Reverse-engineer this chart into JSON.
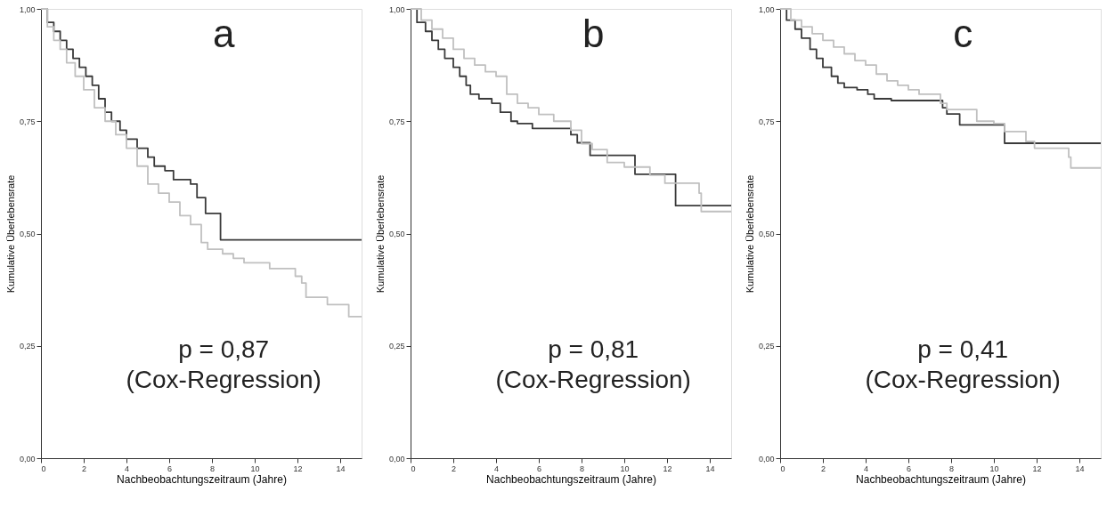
{
  "chart_data": [
    {
      "type": "step",
      "title": "a",
      "xlabel": "Nachbeobachtungszeitraum (Jahre)",
      "ylabel": "Kumulative Überlebensrate",
      "xlim": [
        0,
        15
      ],
      "xticks": [
        0,
        2,
        4,
        6,
        8,
        10,
        12,
        14
      ],
      "ylim": [
        0,
        1
      ],
      "yticks": [
        {
          "value": 0,
          "label": "0,00"
        },
        {
          "value": 0.25,
          "label": "0,25"
        },
        {
          "value": 0.5,
          "label": "0,50"
        },
        {
          "value": 0.75,
          "label": "0,75"
        },
        {
          "value": 1,
          "label": "1,00"
        }
      ],
      "annotations": [
        "p = 0,87",
        "(Cox-Regression)"
      ],
      "series": [
        {
          "color": "#3a3a3a",
          "x": [
            0,
            0.3,
            0.6,
            0.9,
            1.2,
            1.5,
            1.8,
            2.1,
            2.4,
            2.7,
            3.0,
            3.3,
            3.7,
            4.0,
            4.5,
            5.0,
            5.3,
            5.8,
            6.2,
            7.0,
            7.3,
            7.7,
            8.4,
            15
          ],
          "values": [
            1.0,
            0.97,
            0.95,
            0.93,
            0.91,
            0.89,
            0.87,
            0.85,
            0.83,
            0.8,
            0.77,
            0.75,
            0.73,
            0.71,
            0.69,
            0.67,
            0.65,
            0.64,
            0.62,
            0.61,
            0.58,
            0.545,
            0.486,
            0.486
          ]
        },
        {
          "color": "#c0c0c0",
          "x": [
            0,
            0.3,
            0.6,
            0.9,
            1.2,
            1.6,
            2,
            2.5,
            3,
            3.5,
            4,
            4.5,
            5,
            5.5,
            6,
            6.5,
            7.0,
            7.5,
            7.8,
            8.5,
            9.0,
            9.5,
            10.7,
            11.9,
            12.2,
            12.4,
            13.4,
            14.4,
            15
          ],
          "values": [
            1,
            0.96,
            0.93,
            0.91,
            0.88,
            0.85,
            0.82,
            0.78,
            0.75,
            0.72,
            0.69,
            0.65,
            0.61,
            0.59,
            0.57,
            0.54,
            0.52,
            0.48,
            0.465,
            0.455,
            0.445,
            0.435,
            0.422,
            0.405,
            0.39,
            0.358,
            0.342,
            0.315,
            0.315
          ]
        }
      ]
    },
    {
      "type": "step",
      "title": "b",
      "xlabel": "Nachbeobachtungszeitraum (Jahre)",
      "ylabel": "Kumulative Überlebensrate",
      "xlim": [
        0,
        15
      ],
      "xticks": [
        0,
        2,
        4,
        6,
        8,
        10,
        12,
        14
      ],
      "ylim": [
        0,
        1
      ],
      "yticks": [
        {
          "value": 0,
          "label": "0,00"
        },
        {
          "value": 0.25,
          "label": "0,25"
        },
        {
          "value": 0.5,
          "label": "0,50"
        },
        {
          "value": 0.75,
          "label": "0,75"
        },
        {
          "value": 1,
          "label": "1,00"
        }
      ],
      "annotations": [
        "p = 0,81",
        "(Cox-Regression)"
      ],
      "series": [
        {
          "color": "#3a3a3a",
          "x": [
            0,
            0.3,
            0.7,
            1,
            1.3,
            1.6,
            2,
            2.3,
            2.6,
            2.8,
            3.2,
            3.8,
            4.2,
            4.7,
            5,
            5.7,
            7.5,
            7.8,
            8.4,
            10.5,
            12.4,
            15
          ],
          "values": [
            1,
            0.97,
            0.95,
            0.93,
            0.91,
            0.89,
            0.87,
            0.85,
            0.83,
            0.81,
            0.8,
            0.79,
            0.77,
            0.75,
            0.745,
            0.734,
            0.72,
            0.702,
            0.674,
            0.632,
            0.562,
            0.562
          ]
        },
        {
          "color": "#c0c0c0",
          "x": [
            0,
            0.5,
            1,
            1.5,
            2,
            2.5,
            3,
            3.5,
            4,
            4.5,
            5,
            5.5,
            6,
            6.7,
            7.5,
            8,
            8.5,
            9.2,
            10,
            11.2,
            11.9,
            13.5,
            13.6,
            15
          ],
          "values": [
            1,
            0.975,
            0.955,
            0.935,
            0.91,
            0.89,
            0.875,
            0.86,
            0.85,
            0.81,
            0.79,
            0.78,
            0.765,
            0.75,
            0.73,
            0.7,
            0.687,
            0.658,
            0.648,
            0.63,
            0.612,
            0.59,
            0.549,
            0.549
          ]
        }
      ]
    },
    {
      "type": "step",
      "title": "c",
      "xlabel": "Nachbeobachtungszeitraum (Jahre)",
      "ylabel": "Kumulative Überlebensrate",
      "xlim": [
        0,
        15
      ],
      "xticks": [
        0,
        2,
        4,
        6,
        8,
        10,
        12,
        14
      ],
      "ylim": [
        0,
        1
      ],
      "yticks": [
        {
          "value": 0,
          "label": "0,00"
        },
        {
          "value": 0.25,
          "label": "0,25"
        },
        {
          "value": 0.5,
          "label": "0,50"
        },
        {
          "value": 0.75,
          "label": "0,75"
        },
        {
          "value": 1,
          "label": "1,00"
        }
      ],
      "annotations": [
        "p = 0,41",
        "(Cox-Regression)"
      ],
      "series": [
        {
          "color": "#3a3a3a",
          "x": [
            0,
            0.3,
            0.7,
            1,
            1.4,
            1.7,
            2,
            2.4,
            2.7,
            3,
            3.6,
            4.1,
            4.4,
            5.2,
            7.6,
            7.8,
            8.4,
            10.5,
            15
          ],
          "values": [
            1,
            0.975,
            0.955,
            0.935,
            0.91,
            0.89,
            0.87,
            0.85,
            0.835,
            0.825,
            0.82,
            0.81,
            0.8,
            0.796,
            0.78,
            0.766,
            0.742,
            0.701,
            0.701
          ]
        },
        {
          "color": "#c0c0c0",
          "x": [
            0,
            0.5,
            1,
            1.5,
            2,
            2.5,
            3,
            3.5,
            4,
            4.5,
            5,
            5.5,
            6,
            6.5,
            7.5,
            7.8,
            9.2,
            10,
            10.5,
            11.5,
            11.9,
            13.5,
            13.6,
            15
          ],
          "values": [
            1,
            0.975,
            0.96,
            0.945,
            0.93,
            0.915,
            0.9,
            0.885,
            0.875,
            0.855,
            0.84,
            0.83,
            0.82,
            0.81,
            0.79,
            0.776,
            0.75,
            0.745,
            0.727,
            0.705,
            0.69,
            0.67,
            0.646,
            0.646
          ]
        }
      ]
    }
  ]
}
